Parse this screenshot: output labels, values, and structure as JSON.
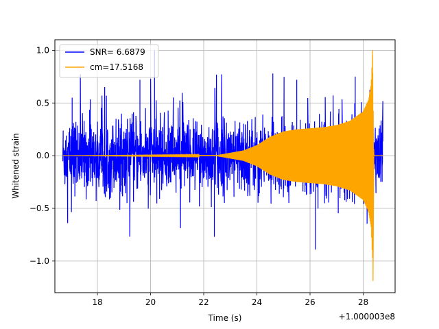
{
  "chart_data": {
    "type": "line",
    "title": "",
    "xlabel": "Time (s)",
    "ylabel": "Whitened strain",
    "x_offset_label": "+1.000003e8",
    "xlim": [
      16.4,
      29.2
    ],
    "ylim": [
      -1.3,
      1.1
    ],
    "x_ticks": [
      18,
      20,
      22,
      24,
      26,
      28
    ],
    "y_ticks": [
      -1.0,
      -0.5,
      0.0,
      0.5,
      1.0
    ],
    "y_tick_labels": [
      "−1.0",
      "−0.5",
      "0.0",
      "0.5",
      "1.0"
    ],
    "grid": true,
    "legend": {
      "position": "top-left",
      "entries": [
        {
          "label": "SNR= 6.6879",
          "color": "#0000ff"
        },
        {
          "label": "cm=17.5168",
          "color": "#ffa500"
        }
      ]
    },
    "series": [
      {
        "label": "SNR= 6.6879",
        "color": "#0000ff",
        "kind": "noise",
        "x_range": [
          16.7,
          28.75
        ],
        "typical_amplitude": 0.38,
        "peak_amplitude_max": 1.0,
        "peak_amplitude_min": -0.9
      },
      {
        "label": "cm=17.5168",
        "color": "#ffa500",
        "kind": "chirp",
        "x_range": [
          16.7,
          28.75
        ],
        "envelope": [
          [
            16.7,
            0.0
          ],
          [
            22.5,
            0.005
          ],
          [
            23.5,
            0.05
          ],
          [
            24.0,
            0.1
          ],
          [
            24.5,
            0.18
          ],
          [
            25.0,
            0.23
          ],
          [
            25.5,
            0.25
          ],
          [
            26.0,
            0.26
          ],
          [
            26.5,
            0.27
          ],
          [
            27.0,
            0.29
          ],
          [
            27.5,
            0.33
          ],
          [
            28.0,
            0.42
          ],
          [
            28.2,
            0.53
          ],
          [
            28.3,
            0.68
          ],
          [
            28.35,
            1.0
          ],
          [
            28.4,
            0.0
          ],
          [
            28.75,
            0.0
          ]
        ],
        "spike_max": 1.0,
        "spike_min": -1.19
      }
    ]
  }
}
